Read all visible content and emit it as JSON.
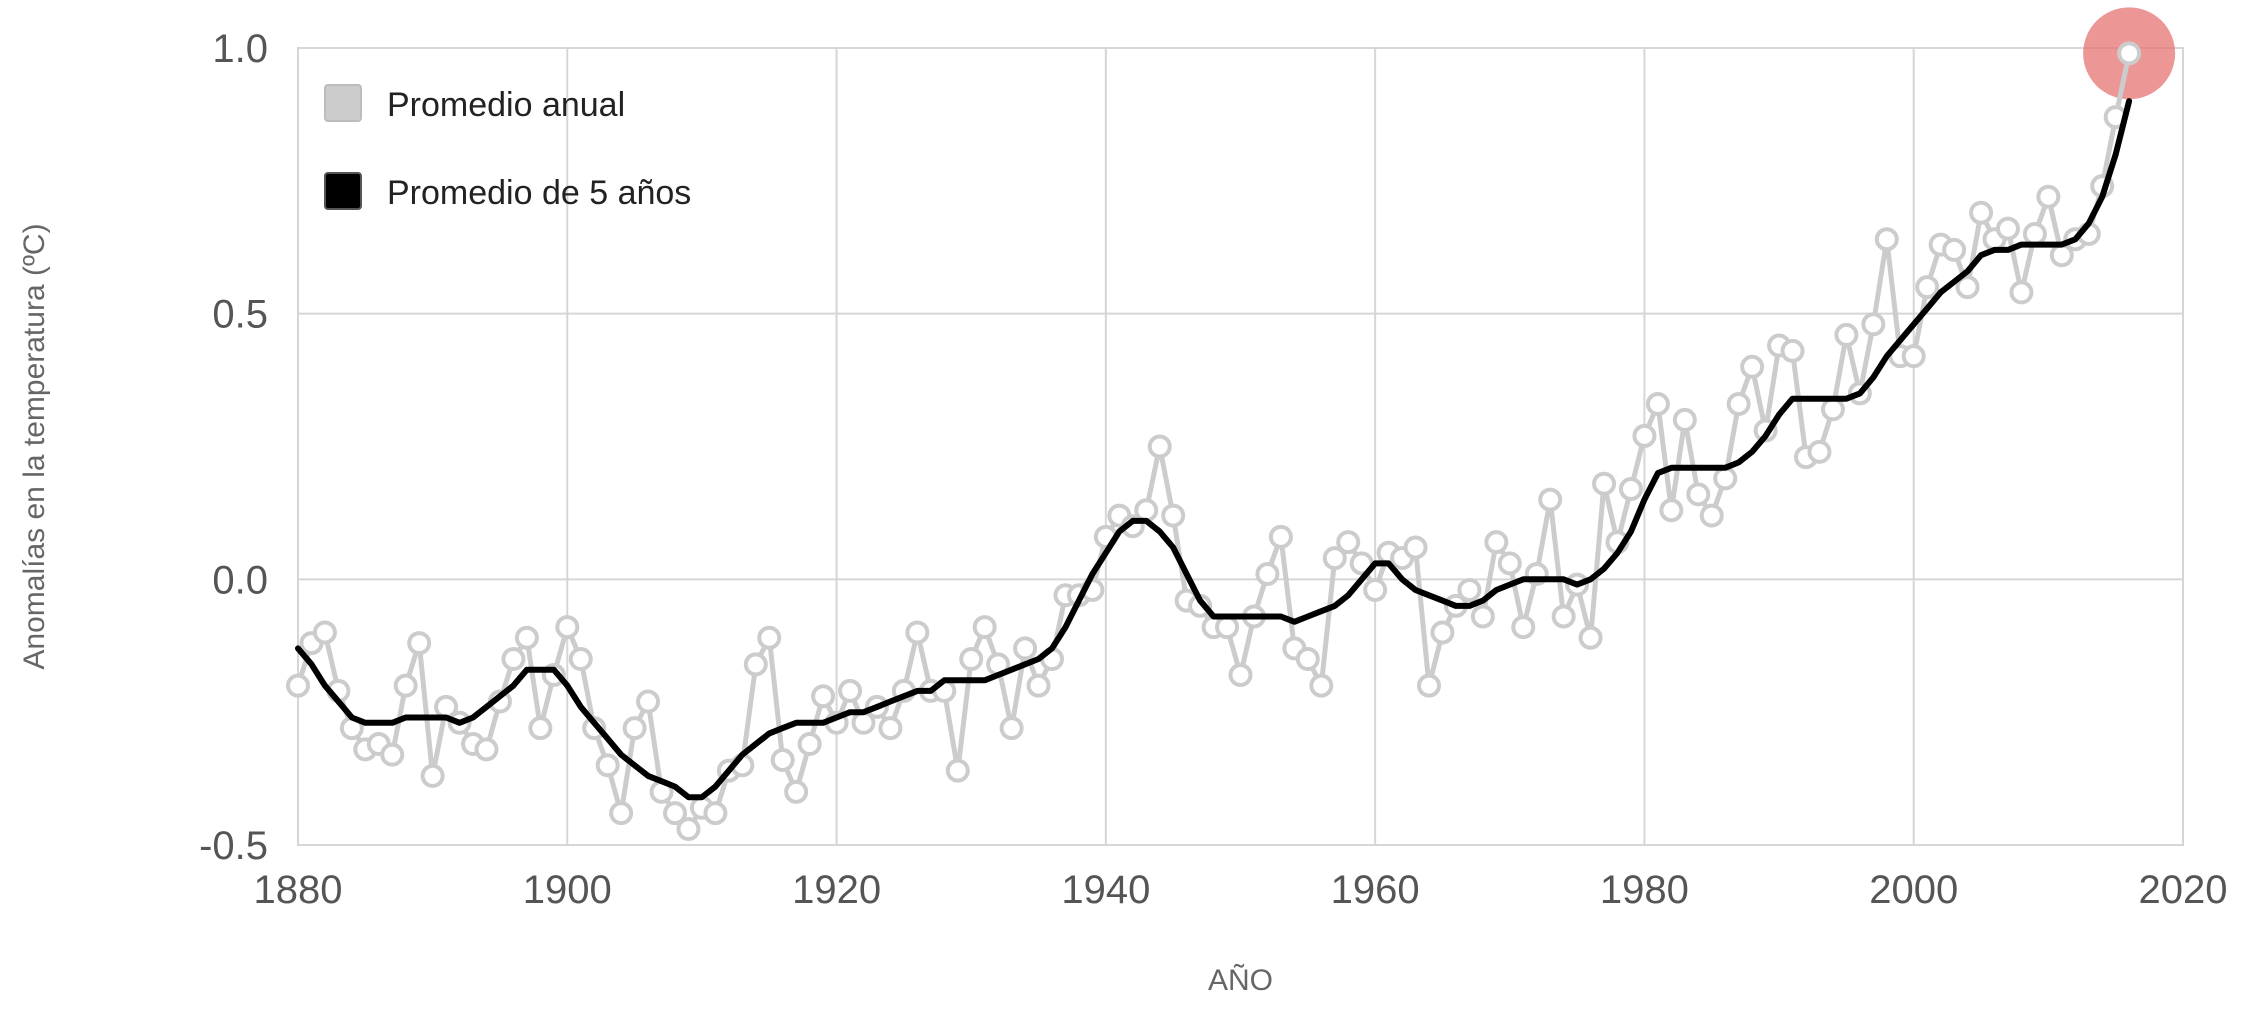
{
  "chart_data": {
    "type": "line",
    "title": "",
    "xlabel": "AÑO",
    "ylabel": "Anomalías en la temperatura (ºC)",
    "xlim": [
      1880,
      2020
    ],
    "ylim": [
      -0.5,
      1.0
    ],
    "xticks": [
      1880,
      1900,
      1920,
      1940,
      1960,
      1980,
      2000,
      2020
    ],
    "xtick_labels": [
      "1880",
      "1900",
      "1920",
      "1940",
      "1960",
      "1980",
      "2000",
      "2020"
    ],
    "yticks": [
      -0.5,
      0.0,
      0.5,
      1.0
    ],
    "ytick_labels": [
      "-0.5",
      "0.0",
      "0.5",
      "1.0"
    ],
    "grid": true,
    "legend_position": "top-left",
    "highlight": {
      "x": 2016,
      "y": 0.99,
      "color": "#e57373"
    },
    "series": [
      {
        "name": "Promedio anual",
        "color": "#cccccc",
        "marker": "circle",
        "x": [
          1880,
          1881,
          1882,
          1883,
          1884,
          1885,
          1886,
          1887,
          1888,
          1889,
          1890,
          1891,
          1892,
          1893,
          1894,
          1895,
          1896,
          1897,
          1898,
          1899,
          1900,
          1901,
          1902,
          1903,
          1904,
          1905,
          1906,
          1907,
          1908,
          1909,
          1910,
          1911,
          1912,
          1913,
          1914,
          1915,
          1916,
          1917,
          1918,
          1919,
          1920,
          1921,
          1922,
          1923,
          1924,
          1925,
          1926,
          1927,
          1928,
          1929,
          1930,
          1931,
          1932,
          1933,
          1934,
          1935,
          1936,
          1937,
          1938,
          1939,
          1940,
          1941,
          1942,
          1943,
          1944,
          1945,
          1946,
          1947,
          1948,
          1949,
          1950,
          1951,
          1952,
          1953,
          1954,
          1955,
          1956,
          1957,
          1958,
          1959,
          1960,
          1961,
          1962,
          1963,
          1964,
          1965,
          1966,
          1967,
          1968,
          1969,
          1970,
          1971,
          1972,
          1973,
          1974,
          1975,
          1976,
          1977,
          1978,
          1979,
          1980,
          1981,
          1982,
          1983,
          1984,
          1985,
          1986,
          1987,
          1988,
          1989,
          1990,
          1991,
          1992,
          1993,
          1994,
          1995,
          1996,
          1997,
          1998,
          1999,
          2000,
          2001,
          2002,
          2003,
          2004,
          2005,
          2006,
          2007,
          2008,
          2009,
          2010,
          2011,
          2012,
          2013,
          2014,
          2015,
          2016
        ],
        "values": [
          -0.2,
          -0.12,
          -0.1,
          -0.21,
          -0.28,
          -0.32,
          -0.31,
          -0.33,
          -0.2,
          -0.12,
          -0.37,
          -0.24,
          -0.27,
          -0.31,
          -0.32,
          -0.23,
          -0.15,
          -0.11,
          -0.28,
          -0.18,
          -0.09,
          -0.15,
          -0.28,
          -0.35,
          -0.44,
          -0.28,
          -0.23,
          -0.4,
          -0.44,
          -0.47,
          -0.43,
          -0.44,
          -0.36,
          -0.35,
          -0.16,
          -0.11,
          -0.34,
          -0.4,
          -0.31,
          -0.22,
          -0.27,
          -0.21,
          -0.27,
          -0.24,
          -0.28,
          -0.21,
          -0.1,
          -0.21,
          -0.21,
          -0.36,
          -0.15,
          -0.09,
          -0.16,
          -0.28,
          -0.13,
          -0.2,
          -0.15,
          -0.03,
          -0.03,
          -0.02,
          0.08,
          0.12,
          0.1,
          0.13,
          0.25,
          0.12,
          -0.04,
          -0.05,
          -0.09,
          -0.09,
          -0.18,
          -0.07,
          0.01,
          0.08,
          -0.13,
          -0.15,
          -0.2,
          0.04,
          0.07,
          0.03,
          -0.02,
          0.05,
          0.04,
          0.06,
          -0.2,
          -0.1,
          -0.05,
          -0.02,
          -0.07,
          0.07,
          0.03,
          -0.09,
          0.01,
          0.15,
          -0.07,
          -0.01,
          -0.11,
          0.18,
          0.07,
          0.17,
          0.27,
          0.33,
          0.13,
          0.3,
          0.16,
          0.12,
          0.19,
          0.33,
          0.4,
          0.28,
          0.44,
          0.43,
          0.23,
          0.24,
          0.32,
          0.46,
          0.35,
          0.48,
          0.64,
          0.42,
          0.42,
          0.55,
          0.63,
          0.62,
          0.55,
          0.69,
          0.64,
          0.66,
          0.54,
          0.65,
          0.72,
          0.61,
          0.64,
          0.65,
          0.74,
          0.87,
          0.99
        ]
      },
      {
        "name": "Promedio de 5 años",
        "color": "#000000",
        "marker": "none",
        "x": [
          1880,
          1881,
          1882,
          1883,
          1884,
          1885,
          1886,
          1887,
          1888,
          1889,
          1890,
          1891,
          1892,
          1893,
          1894,
          1895,
          1896,
          1897,
          1898,
          1899,
          1900,
          1901,
          1902,
          1903,
          1904,
          1905,
          1906,
          1907,
          1908,
          1909,
          1910,
          1911,
          1912,
          1913,
          1914,
          1915,
          1916,
          1917,
          1918,
          1919,
          1920,
          1921,
          1922,
          1923,
          1924,
          1925,
          1926,
          1927,
          1928,
          1929,
          1930,
          1931,
          1932,
          1933,
          1934,
          1935,
          1936,
          1937,
          1938,
          1939,
          1940,
          1941,
          1942,
          1943,
          1944,
          1945,
          1946,
          1947,
          1948,
          1949,
          1950,
          1951,
          1952,
          1953,
          1954,
          1955,
          1956,
          1957,
          1958,
          1959,
          1960,
          1961,
          1962,
          1963,
          1964,
          1965,
          1966,
          1967,
          1968,
          1969,
          1970,
          1971,
          1972,
          1973,
          1974,
          1975,
          1976,
          1977,
          1978,
          1979,
          1980,
          1981,
          1982,
          1983,
          1984,
          1985,
          1986,
          1987,
          1988,
          1989,
          1990,
          1991,
          1992,
          1993,
          1994,
          1995,
          1996,
          1997,
          1998,
          1999,
          2000,
          2001,
          2002,
          2003,
          2004,
          2005,
          2006,
          2007,
          2008,
          2009,
          2010,
          2011,
          2012,
          2013,
          2014,
          2015,
          2016
        ],
        "values": [
          -0.13,
          -0.16,
          -0.2,
          -0.23,
          -0.26,
          -0.27,
          -0.27,
          -0.27,
          -0.26,
          -0.26,
          -0.26,
          -0.26,
          -0.27,
          -0.26,
          -0.24,
          -0.22,
          -0.2,
          -0.17,
          -0.17,
          -0.17,
          -0.2,
          -0.24,
          -0.27,
          -0.3,
          -0.33,
          -0.35,
          -0.37,
          -0.38,
          -0.39,
          -0.41,
          -0.41,
          -0.39,
          -0.36,
          -0.33,
          -0.31,
          -0.29,
          -0.28,
          -0.27,
          -0.27,
          -0.27,
          -0.26,
          -0.25,
          -0.25,
          -0.24,
          -0.23,
          -0.22,
          -0.21,
          -0.21,
          -0.19,
          -0.19,
          -0.19,
          -0.19,
          -0.18,
          -0.17,
          -0.16,
          -0.15,
          -0.13,
          -0.09,
          -0.04,
          0.01,
          0.05,
          0.09,
          0.11,
          0.11,
          0.09,
          0.06,
          0.01,
          -0.04,
          -0.07,
          -0.07,
          -0.07,
          -0.07,
          -0.07,
          -0.07,
          -0.08,
          -0.07,
          -0.06,
          -0.05,
          -0.03,
          0.0,
          0.03,
          0.03,
          0.0,
          -0.02,
          -0.03,
          -0.04,
          -0.05,
          -0.05,
          -0.04,
          -0.02,
          -0.01,
          0.0,
          0.0,
          0.0,
          0.0,
          -0.01,
          0.0,
          0.02,
          0.05,
          0.09,
          0.15,
          0.2,
          0.21,
          0.21,
          0.21,
          0.21,
          0.21,
          0.22,
          0.24,
          0.27,
          0.31,
          0.34,
          0.34,
          0.34,
          0.34,
          0.34,
          0.35,
          0.38,
          0.42,
          0.45,
          0.48,
          0.51,
          0.54,
          0.56,
          0.58,
          0.61,
          0.62,
          0.62,
          0.63,
          0.63,
          0.63,
          0.63,
          0.64,
          0.67,
          0.72,
          0.8,
          0.9
        ]
      }
    ]
  }
}
